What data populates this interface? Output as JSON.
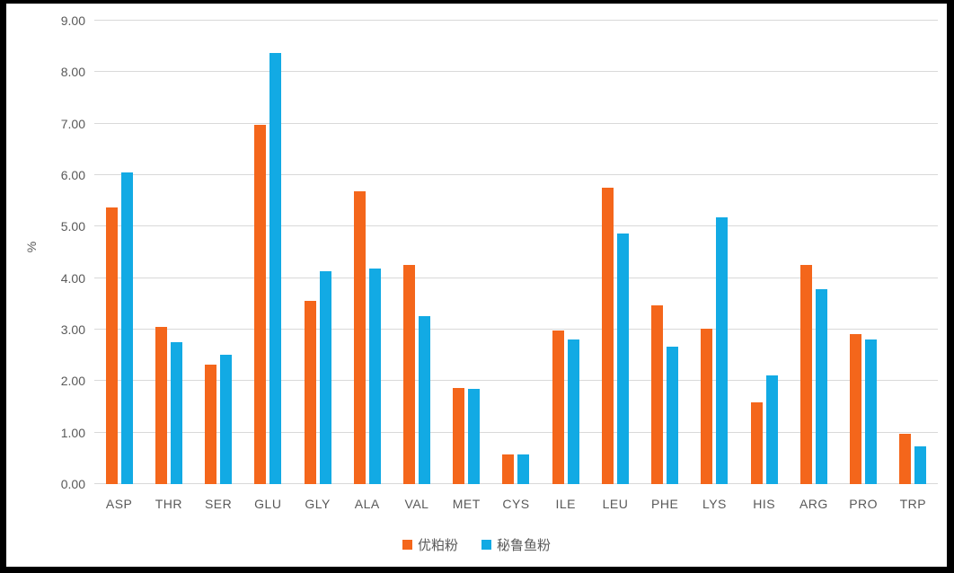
{
  "chart_data": {
    "type": "bar",
    "title": "",
    "xlabel": "",
    "ylabel": "%",
    "ylim": [
      0,
      9
    ],
    "y_tick_step": 1,
    "y_tick_labels": [
      "0.00",
      "1.00",
      "2.00",
      "3.00",
      "4.00",
      "5.00",
      "6.00",
      "7.00",
      "8.00",
      "9.00"
    ],
    "grid": true,
    "legend_position": "bottom",
    "categories": [
      "ASP",
      "THR",
      "SER",
      "GLU",
      "GLY",
      "ALA",
      "VAL",
      "MET",
      "CYS",
      "ILE",
      "LEU",
      "PHE",
      "LYS",
      "HIS",
      "ARG",
      "PRO",
      "TRP"
    ],
    "series": [
      {
        "name": "优粕粉",
        "color": "#F4661B",
        "values": [
          5.37,
          3.05,
          2.32,
          6.98,
          3.55,
          5.68,
          4.26,
          1.87,
          0.58,
          2.98,
          5.76,
          3.47,
          3.02,
          1.59,
          4.26,
          2.92,
          0.97
        ]
      },
      {
        "name": "秘鲁鱼粉",
        "color": "#12AAE4",
        "values": [
          6.05,
          2.76,
          2.52,
          8.37,
          4.14,
          4.19,
          3.27,
          1.85,
          0.57,
          2.8,
          4.87,
          2.67,
          5.18,
          2.11,
          3.79,
          2.8,
          0.73
        ]
      }
    ]
  },
  "colors": {
    "frame": "#000000",
    "background": "#FFFFFF",
    "text": "#595959",
    "gridline": "#D9D9D9"
  }
}
